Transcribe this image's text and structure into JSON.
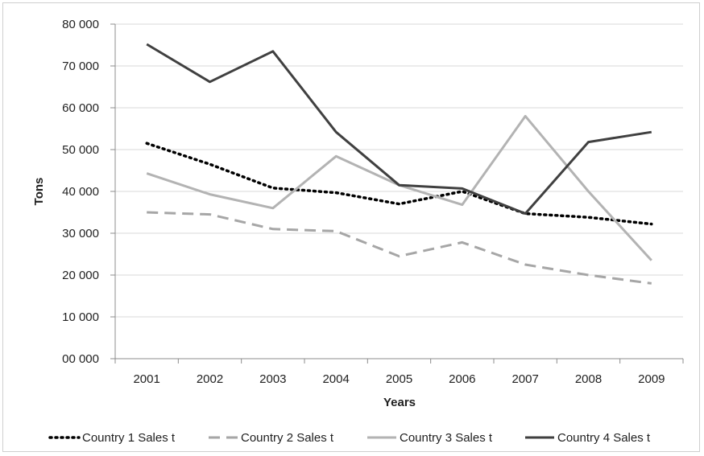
{
  "chart_data": {
    "type": "line",
    "title": "",
    "xlabel": "Years",
    "ylabel": "Tons",
    "categories": [
      "2001",
      "2002",
      "2003",
      "2004",
      "2005",
      "2006",
      "2007",
      "2008",
      "2009"
    ],
    "ylim": [
      0,
      80000
    ],
    "yticks": [
      0,
      10000,
      20000,
      30000,
      40000,
      50000,
      60000,
      70000,
      80000
    ],
    "ytick_labels": [
      "00 000",
      "10 000",
      "20 000",
      "30 000",
      "40 000",
      "50 000",
      "60 000",
      "70 000",
      "80 000"
    ],
    "grid": "horizontal",
    "legend_position": "bottom",
    "series": [
      {
        "name": "Country 1 Sales t",
        "values": [
          51500,
          46500,
          40800,
          39700,
          37000,
          40000,
          34700,
          33800,
          32200
        ],
        "color": "#000000",
        "style": "dotted"
      },
      {
        "name": "Country 2 Sales t",
        "values": [
          35000,
          34500,
          31000,
          30500,
          24500,
          27800,
          22500,
          20000,
          18000
        ],
        "color": "#a6a6a6",
        "style": "dashed"
      },
      {
        "name": "Country 3 Sales t",
        "values": [
          44300,
          39300,
          36000,
          48400,
          41500,
          36800,
          58000,
          40000,
          23500
        ],
        "color": "#b3b3b3",
        "style": "solid"
      },
      {
        "name": "Country 4 Sales t",
        "values": [
          75200,
          66200,
          73500,
          54200,
          41500,
          40700,
          34700,
          51800,
          54200
        ],
        "color": "#404040",
        "style": "solid"
      }
    ]
  }
}
